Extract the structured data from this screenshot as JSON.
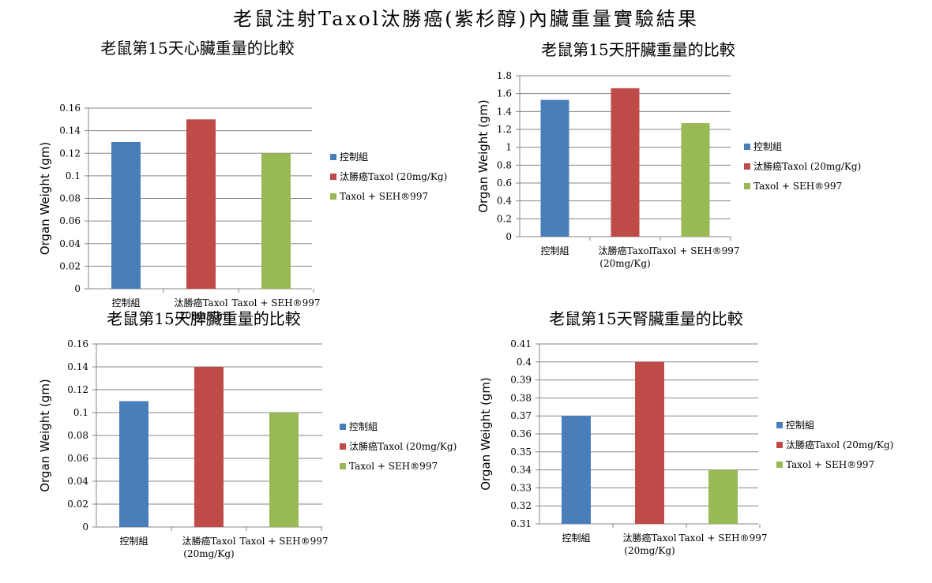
{
  "page": {
    "title": "老鼠注射Taxol汰勝癌(紫杉醇)內臟重量實驗結果"
  },
  "colors": {
    "control": "#4a7ebb",
    "taxol": "#be4b48",
    "combo": "#98b954",
    "grid": "#868686"
  },
  "chart_data": [
    {
      "type": "bar",
      "title": "老鼠第15天心臟重量的比較",
      "ylabel": "Organ Weight (gm)",
      "xlabel": "",
      "categories": [
        [
          "控制組"
        ],
        [
          "汰勝癌Taxol",
          "(20mg/Kg)"
        ],
        [
          "Taxol + SEH®997"
        ]
      ],
      "values": [
        0.13,
        0.15,
        0.12
      ],
      "ylim": [
        0,
        0.16
      ],
      "yticks": [
        "0",
        "0.02",
        "0.04",
        "0.06",
        "0.08",
        "0.1",
        "0.12",
        "0.14",
        "0.16"
      ],
      "legend": [
        "控制組",
        "汰勝癌Taxol (20mg/Kg)",
        "Taxol + SEH®997"
      ],
      "legend_position": "right",
      "grid": true
    },
    {
      "type": "bar",
      "title": "老鼠第15天肝臟重量的比較",
      "ylabel": "Organ Weight (gm)",
      "xlabel": "",
      "categories": [
        [
          "控制組"
        ],
        [
          "汰勝癌Taxol",
          "(20mg/Kg)"
        ],
        [
          "Taxol + SEH®997"
        ]
      ],
      "values": [
        1.53,
        1.66,
        1.27
      ],
      "ylim": [
        0,
        1.8
      ],
      "yticks": [
        "0",
        "0.2",
        "0.4",
        "0.6",
        "0.8",
        "1",
        "1.2",
        "1.4",
        "1.6",
        "1.8"
      ],
      "legend": [
        "控制組",
        "汰勝癌Taxol (20mg/Kg)",
        "Taxol + SEH®997"
      ],
      "legend_position": "right",
      "grid": true
    },
    {
      "type": "bar",
      "title": "老鼠第15天脾臟重量的比較",
      "ylabel": "Organ Weight (gm)",
      "xlabel": "",
      "categories": [
        [
          "控制組"
        ],
        [
          "汰勝癌Taxol",
          "(20mg/Kg)"
        ],
        [
          "Taxol + SEH®997"
        ]
      ],
      "values": [
        0.11,
        0.14,
        0.1
      ],
      "ylim": [
        0,
        0.16
      ],
      "yticks": [
        "0",
        "0.02",
        "0.04",
        "0.06",
        "0.08",
        "0.1",
        "0.12",
        "0.14",
        "0.16"
      ],
      "legend": [
        "控制組",
        "汰勝癌Taxol (20mg/Kg)",
        "Taxol + SEH®997"
      ],
      "legend_position": "right",
      "grid": true
    },
    {
      "type": "bar",
      "title": "老鼠第15天腎臟重量的比較",
      "ylabel": "Organ Weight (gm)",
      "xlabel": "",
      "categories": [
        [
          "控制組"
        ],
        [
          "汰勝癌Taxol",
          "(20mg/Kg)"
        ],
        [
          "Taxol + SEH®997"
        ]
      ],
      "values": [
        0.37,
        0.4,
        0.34
      ],
      "ylim": [
        0.31,
        0.41
      ],
      "yticks": [
        "0.31",
        "0.32",
        "0.33",
        "0.34",
        "0.35",
        "0.36",
        "0.37",
        "0.38",
        "0.39",
        "0.4",
        "0.41"
      ],
      "legend": [
        "控制組",
        "汰勝癌Taxol (20mg/Kg)",
        "Taxol + SEH®997"
      ],
      "legend_position": "right",
      "grid": true
    }
  ]
}
